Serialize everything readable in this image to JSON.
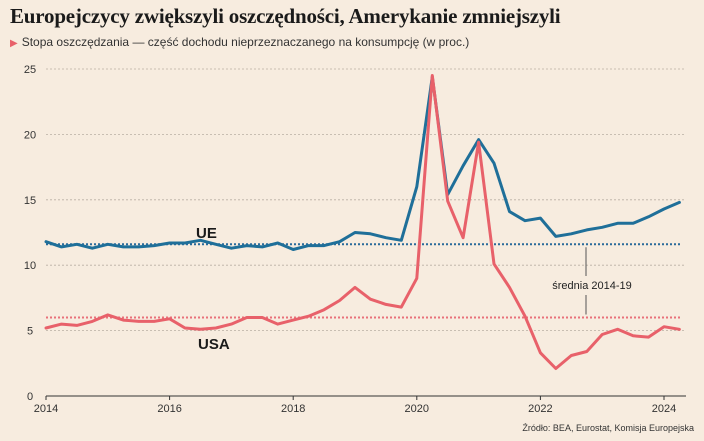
{
  "header": {
    "title": "Europejczycy zwiększyli oszczędności, Amerykanie zmniejszyli",
    "subtitle": "Stopa oszczędzania — część dochodu nieprzeznaczanego na konsumpcję (w proc.)"
  },
  "source": "Źródło: BEA, Eurostat, Komisja Europejska",
  "colors": {
    "background": "#f7ecdf",
    "ue": "#1f6f99",
    "usa": "#e8616a",
    "ue_avg": "#2a6a9a",
    "usa_avg": "#e8717a",
    "grid": "#b9aea3",
    "annot_line": "#555555"
  },
  "chart_data": {
    "type": "line",
    "title": "Europejczycy zwiększyli oszczędności, Amerykanie zmniejszyli",
    "subtitle": "Stopa oszczędzania — część dochodu nieprzeznaczanego na konsumpcję (w proc.)",
    "xlabel": "",
    "ylabel": "",
    "xlim": [
      2014,
      2024.5
    ],
    "ylim": [
      0,
      25
    ],
    "x_ticks": [
      2014,
      2016,
      2018,
      2020,
      2022,
      2024
    ],
    "y_ticks": [
      0,
      5,
      10,
      15,
      20,
      25
    ],
    "grid": "horizontal dashed",
    "series": [
      {
        "name": "UE",
        "color": "#1f6f99",
        "x": [
          2014.0,
          2014.25,
          2014.5,
          2014.75,
          2015.0,
          2015.25,
          2015.5,
          2015.75,
          2016.0,
          2016.25,
          2016.5,
          2016.75,
          2017.0,
          2017.25,
          2017.5,
          2017.75,
          2018.0,
          2018.25,
          2018.5,
          2018.75,
          2019.0,
          2019.25,
          2019.5,
          2019.75,
          2020.0,
          2020.25,
          2020.5,
          2020.75,
          2021.0,
          2021.25,
          2021.5,
          2021.75,
          2022.0,
          2022.25,
          2022.5,
          2022.75,
          2023.0,
          2023.25,
          2023.5,
          2023.75,
          2024.0,
          2024.25
        ],
        "values": [
          11.8,
          11.4,
          11.6,
          11.3,
          11.6,
          11.4,
          11.4,
          11.5,
          11.7,
          11.7,
          11.9,
          11.6,
          11.3,
          11.5,
          11.4,
          11.7,
          11.2,
          11.5,
          11.5,
          11.8,
          12.5,
          12.4,
          12.1,
          11.9,
          16.0,
          24.4,
          15.4,
          17.6,
          19.6,
          17.8,
          14.1,
          13.4,
          13.6,
          12.2,
          12.4,
          12.7,
          12.9,
          13.2,
          13.2,
          13.7,
          14.3,
          14.8
        ]
      },
      {
        "name": "USA",
        "color": "#e8616a",
        "x": [
          2014.0,
          2014.25,
          2014.5,
          2014.75,
          2015.0,
          2015.25,
          2015.5,
          2015.75,
          2016.0,
          2016.25,
          2016.5,
          2016.75,
          2017.0,
          2017.25,
          2017.5,
          2017.75,
          2018.0,
          2018.25,
          2018.5,
          2018.75,
          2019.0,
          2019.25,
          2019.5,
          2019.75,
          2020.0,
          2020.25,
          2020.5,
          2020.75,
          2021.0,
          2021.25,
          2021.5,
          2021.75,
          2022.0,
          2022.25,
          2022.5,
          2022.75,
          2023.0,
          2023.25,
          2023.5,
          2023.75,
          2024.0,
          2024.25
        ],
        "values": [
          5.2,
          5.5,
          5.4,
          5.7,
          6.2,
          5.8,
          5.7,
          5.7,
          5.9,
          5.2,
          5.1,
          5.2,
          5.5,
          6.0,
          6.0,
          5.5,
          5.8,
          6.1,
          6.6,
          7.3,
          8.3,
          7.4,
          7.0,
          6.8,
          9.0,
          24.5,
          14.9,
          12.1,
          19.4,
          10.1,
          8.3,
          6.1,
          3.3,
          2.1,
          3.1,
          3.4,
          4.7,
          5.1,
          4.6,
          4.5,
          5.3,
          5.1
        ]
      }
    ],
    "averages": [
      {
        "name": "UE",
        "value": 11.6
      },
      {
        "name": "USA",
        "value": 6.0
      }
    ],
    "labels": {
      "ue": "UE",
      "usa": "USA",
      "average": "średnia 2014-19"
    }
  }
}
